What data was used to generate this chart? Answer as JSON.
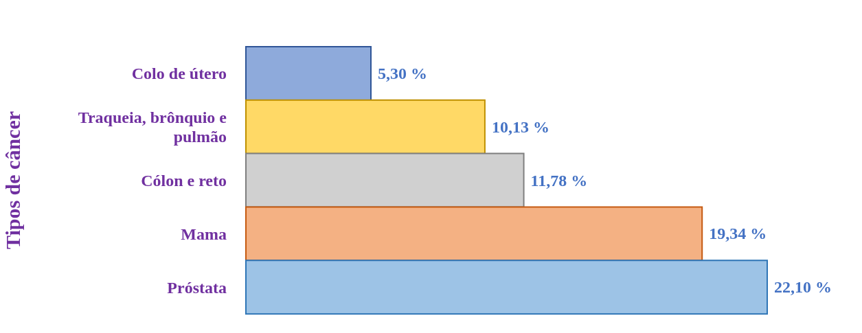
{
  "chart_data": {
    "type": "bar",
    "orientation": "horizontal",
    "ylabel": "Tipos de câncer",
    "categories": [
      "Colo de útero",
      "Traqueia, brônquio e pulmão",
      "Cólon e reto",
      "Mama",
      "Próstata"
    ],
    "values": [
      5.3,
      10.13,
      11.78,
      19.34,
      22.1
    ],
    "colors": [
      "#8eaadb",
      "#ffd966",
      "#d0d0d0",
      "#f4b183",
      "#9dc3e6"
    ],
    "value_labels": [
      "5,30 %",
      "10,13 %",
      "11,78 %",
      "19,34 %",
      "22,10 %"
    ],
    "legend": false,
    "grid": false
  }
}
